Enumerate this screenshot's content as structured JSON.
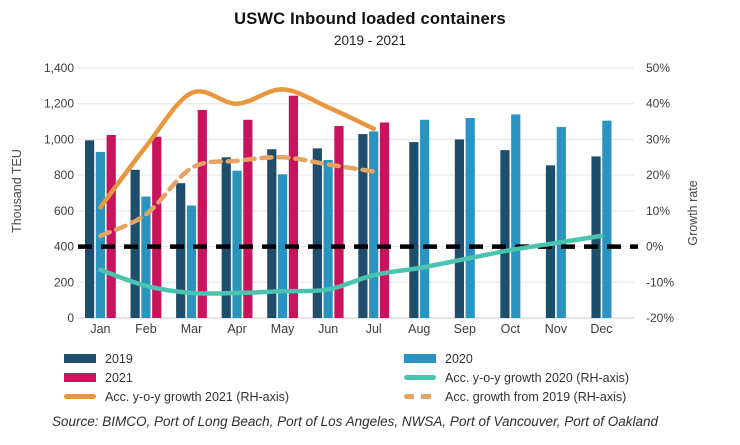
{
  "title": "USWC Inbound loaded containers",
  "subtitle": "2019 - 2021",
  "source": "Source: BIMCO, Port of Long Beach, Port of Los Angeles, NWSA, Port of Vancouver, Port of Oakland",
  "colors": {
    "bar_2019": "#1f4e6d",
    "bar_2020": "#2b93c0",
    "bar_2021": "#c9135c",
    "line_growth_2021": "#e9973f",
    "line_growth_2020": "#4ac4af",
    "line_growth_from_2019": "#e5a364",
    "reference_line": "#000000",
    "gridline": "#e3e3e3"
  },
  "chart_data": {
    "type": "bar",
    "title": "USWC Inbound loaded containers",
    "subtitle": "2019 - 2021",
    "categories": [
      "Jan",
      "Feb",
      "Mar",
      "Apr",
      "May",
      "Jun",
      "Jul",
      "Aug",
      "Sep",
      "Oct",
      "Nov",
      "Dec"
    ],
    "left_axis": {
      "label": "Thousand TEU",
      "min": 0,
      "max": 1400,
      "tick_labels": [
        "1,400",
        "1,200",
        "1,000",
        "800",
        "600",
        "400",
        "200",
        "0"
      ],
      "grid": true
    },
    "right_axis": {
      "label": "Growth rate",
      "min": -20,
      "max": 50,
      "tick_labels": [
        "50%",
        "40%",
        "30%",
        "20%",
        "10%",
        "0%",
        "-10%",
        "-20%"
      ]
    },
    "bar_series": [
      {
        "name": "2019",
        "color": "#1f4e6d",
        "axis": "left",
        "values": [
          995,
          830,
          755,
          900,
          945,
          950,
          1030,
          985,
          1000,
          940,
          855,
          905
        ]
      },
      {
        "name": "2020",
        "color": "#2b93c0",
        "axis": "left",
        "values": [
          930,
          680,
          630,
          825,
          805,
          885,
          1045,
          1110,
          1120,
          1140,
          1070,
          1105
        ]
      },
      {
        "name": "2021",
        "color": "#c9135c",
        "axis": "left",
        "values": [
          1025,
          1015,
          1165,
          1110,
          1245,
          1075,
          1095,
          null,
          null,
          null,
          null,
          null
        ]
      }
    ],
    "line_series": [
      {
        "name": "Acc. y-o-y growth 2020 (RH-axis)",
        "color": "#4ac4af",
        "style": "solid",
        "axis": "right",
        "values": [
          -6.5,
          -11,
          -13,
          -13,
          -12.5,
          -12,
          -8,
          -6,
          -3.5,
          -1,
          1,
          3
        ]
      },
      {
        "name": "Acc. growth from 2019 (RH-axis)",
        "color": "#e5a364",
        "style": "dashed",
        "axis": "right",
        "values": [
          3,
          9,
          22,
          24,
          25,
          23,
          21,
          null,
          null,
          null,
          null,
          null
        ]
      },
      {
        "name": "Acc. y-o-y growth 2021 (RH-axis)",
        "color": "#e9973f",
        "style": "solid",
        "axis": "right",
        "values": [
          11,
          28,
          43,
          40,
          44,
          39,
          33,
          null,
          null,
          null,
          null,
          null
        ]
      }
    ],
    "reference_line": {
      "value": 0,
      "axis": "right",
      "style": "dashed",
      "color": "#000000"
    },
    "legend_position": "bottom"
  },
  "legend": {
    "left": [
      {
        "label": "2019",
        "swatch": "bar",
        "color": "#1f4e6d"
      },
      {
        "label": "2021",
        "swatch": "bar",
        "color": "#c9135c"
      },
      {
        "label": "Acc. y-o-y growth 2021 (RH-axis)",
        "swatch": "line",
        "color": "#e9973f"
      }
    ],
    "right": [
      {
        "label": "2020",
        "swatch": "bar",
        "color": "#2b93c0"
      },
      {
        "label": "Acc. y-o-y growth 2020 (RH-axis)",
        "swatch": "line",
        "color": "#4ac4af"
      },
      {
        "label": "Acc. growth from 2019 (RH-axis)",
        "swatch": "dashed-line",
        "color": "#e5a364"
      }
    ]
  }
}
